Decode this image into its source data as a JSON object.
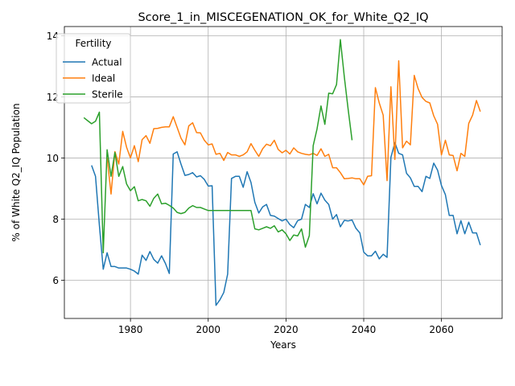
{
  "chart_data": {
    "type": "line",
    "title": "Score_1_in_MISCEGENATION_OK_for_White_Q2_IQ",
    "xlabel": "Years",
    "ylabel": "% of White Q2_IQ Population",
    "xlim": [
      1963.0,
      2075.6
    ],
    "ylim": [
      4.75,
      14.3
    ],
    "x_ticks": [
      1980,
      2000,
      2020,
      2040,
      2060
    ],
    "y_ticks": [
      6,
      8,
      10,
      12,
      14
    ],
    "grid": true,
    "legend": {
      "title": "Fertility",
      "placement": "upper-left"
    },
    "series": [
      {
        "name": "Actual",
        "color": "#1f77b4",
        "x": [
          1970,
          1971,
          1972,
          1973,
          1974,
          1975,
          1976,
          1977,
          1978,
          1979,
          1980,
          1981,
          1982,
          1983,
          1984,
          1985,
          1986,
          1987,
          1988,
          1989,
          1990,
          1991,
          1992,
          1993,
          1994,
          1995,
          1996,
          1997,
          1998,
          1999,
          2000,
          2001,
          2002,
          2003,
          2004,
          2005,
          2006,
          2007,
          2008,
          2009,
          2010,
          2011,
          2012,
          2013,
          2014,
          2015,
          2016,
          2017,
          2018,
          2019,
          2020,
          2021,
          2022,
          2023,
          2024,
          2025,
          2026,
          2027,
          2028,
          2029,
          2030,
          2031,
          2032,
          2033,
          2034,
          2035,
          2036,
          2037,
          2038,
          2039,
          2040,
          2041,
          2042,
          2043,
          2044,
          2045,
          2046,
          2047,
          2048,
          2049,
          2050,
          2051,
          2052,
          2053,
          2054,
          2055,
          2056,
          2057,
          2058,
          2059,
          2060,
          2061,
          2062,
          2063,
          2064,
          2065,
          2066,
          2067,
          2068,
          2069,
          2070
        ],
        "values": [
          9.76,
          9.4,
          7.8,
          6.36,
          6.9,
          6.45,
          6.45,
          6.4,
          6.4,
          6.4,
          6.36,
          6.3,
          6.2,
          6.82,
          6.65,
          6.94,
          6.68,
          6.56,
          6.8,
          6.55,
          6.22,
          10.13,
          10.2,
          9.8,
          9.43,
          9.46,
          9.52,
          9.38,
          9.42,
          9.3,
          9.08,
          9.09,
          5.18,
          5.36,
          5.6,
          6.2,
          9.33,
          9.4,
          9.4,
          9.04,
          9.55,
          9.2,
          8.55,
          8.2,
          8.4,
          8.48,
          8.12,
          8.1,
          8.02,
          7.94,
          8.0,
          7.82,
          7.72,
          7.95,
          8.0,
          8.48,
          8.38,
          8.83,
          8.5,
          8.85,
          8.62,
          8.48,
          8.0,
          8.15,
          7.75,
          7.96,
          7.94,
          7.97,
          7.7,
          7.55,
          6.92,
          6.8,
          6.8,
          6.95,
          6.7,
          6.85,
          6.75,
          10.02,
          10.5,
          10.15,
          10.1,
          9.5,
          9.35,
          9.07,
          9.07,
          8.9,
          9.4,
          9.33,
          9.83,
          9.6,
          9.1,
          8.8,
          8.12,
          8.12,
          7.52,
          7.95,
          7.52,
          7.9,
          7.55,
          7.55,
          7.15
        ]
      },
      {
        "name": "Ideal",
        "color": "#ff7f0e",
        "x": [
          1974,
          1975,
          1976,
          1977,
          1978,
          1979,
          1980,
          1981,
          1982,
          1983,
          1984,
          1985,
          1986,
          1987,
          1988,
          1989,
          1990,
          1991,
          1992,
          1993,
          1994,
          1995,
          1996,
          1997,
          1998,
          1999,
          2000,
          2001,
          2002,
          2003,
          2004,
          2005,
          2006,
          2007,
          2008,
          2009,
          2010,
          2011,
          2012,
          2013,
          2014,
          2015,
          2016,
          2017,
          2018,
          2019,
          2020,
          2021,
          2022,
          2023,
          2024,
          2025,
          2026,
          2027,
          2028,
          2029,
          2030,
          2031,
          2032,
          2033,
          2034,
          2035,
          2036,
          2037,
          2038,
          2039,
          2040,
          2041,
          2042,
          2043,
          2044,
          2045,
          2046,
          2047,
          2048,
          2049,
          2050,
          2051,
          2052,
          2053,
          2054,
          2055,
          2056,
          2057,
          2058,
          2059,
          2060,
          2061,
          2062,
          2063,
          2064,
          2065,
          2066,
          2067,
          2068,
          2069,
          2070
        ],
        "values": [
          10.02,
          8.82,
          10.21,
          9.8,
          10.87,
          10.35,
          10.0,
          10.4,
          9.88,
          10.6,
          10.73,
          10.48,
          10.96,
          10.97,
          11.0,
          11.02,
          11.02,
          11.35,
          11.0,
          10.65,
          10.43,
          11.05,
          11.15,
          10.83,
          10.82,
          10.58,
          10.43,
          10.46,
          10.12,
          10.15,
          9.92,
          10.18,
          10.1,
          10.1,
          10.05,
          10.1,
          10.2,
          10.47,
          10.25,
          10.05,
          10.3,
          10.45,
          10.4,
          10.58,
          10.28,
          10.17,
          10.25,
          10.13,
          10.33,
          10.2,
          10.15,
          10.12,
          10.1,
          10.15,
          10.08,
          10.3,
          10.05,
          10.12,
          9.68,
          9.68,
          9.52,
          9.32,
          9.33,
          9.35,
          9.32,
          9.32,
          9.12,
          9.4,
          9.42,
          12.3,
          11.8,
          11.4,
          9.26,
          12.33,
          9.95,
          13.18,
          10.33,
          10.55,
          10.43,
          12.7,
          12.27,
          11.98,
          11.85,
          11.8,
          11.38,
          11.1,
          10.1,
          10.58,
          10.1,
          10.08,
          9.58,
          10.15,
          10.05,
          11.13,
          11.4,
          11.88,
          11.52
        ]
      },
      {
        "name": "Sterile",
        "color": "#2ca02c",
        "x": [
          1968,
          1969,
          1970,
          1971,
          1972,
          1973,
          1974,
          1975,
          1976,
          1977,
          1978,
          1979,
          1980,
          1981,
          1982,
          1983,
          1984,
          1985,
          1986,
          1987,
          1988,
          1989,
          1990,
          1991,
          1992,
          1993,
          1994,
          1995,
          1996,
          1997,
          1998,
          1999,
          2000,
          2001,
          2002,
          2003,
          2004,
          2005,
          2006,
          2007,
          2008,
          2009,
          2010,
          2011,
          2012,
          2013,
          2014,
          2015,
          2016,
          2017,
          2018,
          2019,
          2020,
          2021,
          2022,
          2023,
          2024,
          2025,
          2026,
          2027,
          2028,
          2029,
          2030,
          2031,
          2032,
          2033,
          2034,
          2035,
          2036,
          2037
        ],
        "values": [
          11.32,
          11.22,
          11.12,
          11.2,
          11.5,
          6.9,
          10.27,
          9.4,
          10.18,
          9.4,
          9.72,
          9.15,
          8.93,
          9.06,
          8.6,
          8.64,
          8.6,
          8.42,
          8.68,
          8.82,
          8.5,
          8.52,
          8.45,
          8.36,
          8.22,
          8.18,
          8.22,
          8.36,
          8.44,
          8.38,
          8.38,
          8.33,
          8.28,
          8.28,
          8.28,
          8.28,
          8.28,
          8.28,
          8.28,
          8.28,
          8.28,
          8.28,
          8.28,
          8.28,
          7.68,
          7.65,
          7.7,
          7.75,
          7.7,
          7.78,
          7.58,
          7.65,
          7.52,
          7.3,
          7.48,
          7.45,
          7.68,
          7.08,
          7.46,
          10.4,
          10.95,
          11.7,
          11.1,
          12.12,
          12.1,
          12.4,
          13.87,
          12.65,
          11.58,
          10.58
        ]
      }
    ]
  }
}
